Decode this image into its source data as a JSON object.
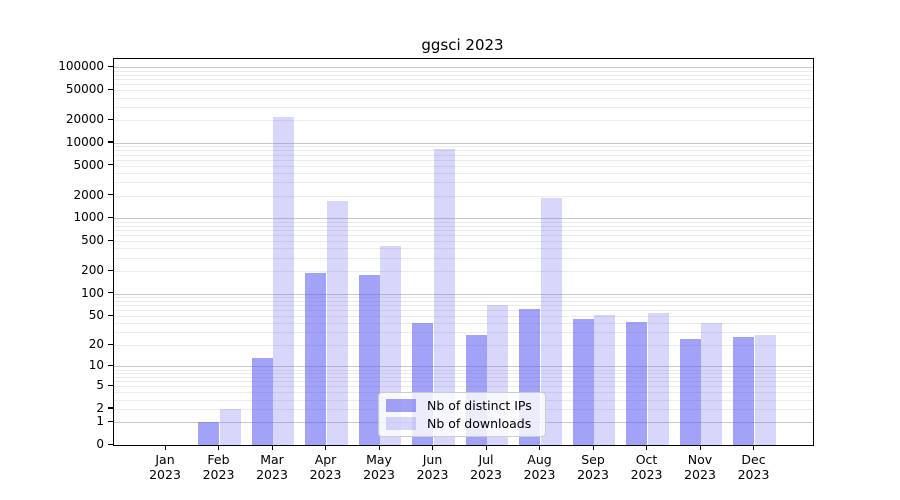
{
  "title": "ggsci 2023",
  "chart_data": {
    "type": "bar",
    "title": "ggsci 2023",
    "categories": [
      "Jan",
      "Feb",
      "Mar",
      "Apr",
      "May",
      "Jun",
      "Jul",
      "Aug",
      "Sep",
      "Oct",
      "Nov",
      "Dec"
    ],
    "year_label": "2023",
    "series": [
      {
        "name": "Nb of distinct IPs",
        "color": "rgba(92,92,240,0.57)",
        "values": [
          0,
          1,
          13,
          190,
          175,
          40,
          28,
          62,
          45,
          41,
          24,
          26
        ]
      },
      {
        "name": "Nb of downloads",
        "color": "rgba(100,100,240,0.26)",
        "values": [
          0,
          2,
          21900,
          1730,
          425,
          8400,
          70,
          1860,
          51,
          55,
          40,
          28
        ]
      }
    ],
    "y_scale": "log10(value+1), 0 at baseline",
    "y_tick_labels": [
      "100000",
      "50000",
      "20000",
      "10000",
      "5000",
      "2000",
      "1000",
      "500",
      "200",
      "100",
      "50",
      "20",
      "10",
      "5",
      "2",
      "1",
      "0"
    ],
    "y_tick_values": [
      100000,
      50000,
      20000,
      10000,
      5000,
      2000,
      1000,
      500,
      200,
      100,
      50,
      20,
      10,
      5,
      2,
      1,
      0
    ],
    "ylim": [
      0,
      131000
    ],
    "grid": true,
    "legend_position": "lower center"
  },
  "colors": {
    "major_grid": "#c9c9c9",
    "minor_grid": "#ebebeb",
    "spine": "#000000",
    "background": "#ffffff",
    "legend_border": "#cccccc"
  }
}
